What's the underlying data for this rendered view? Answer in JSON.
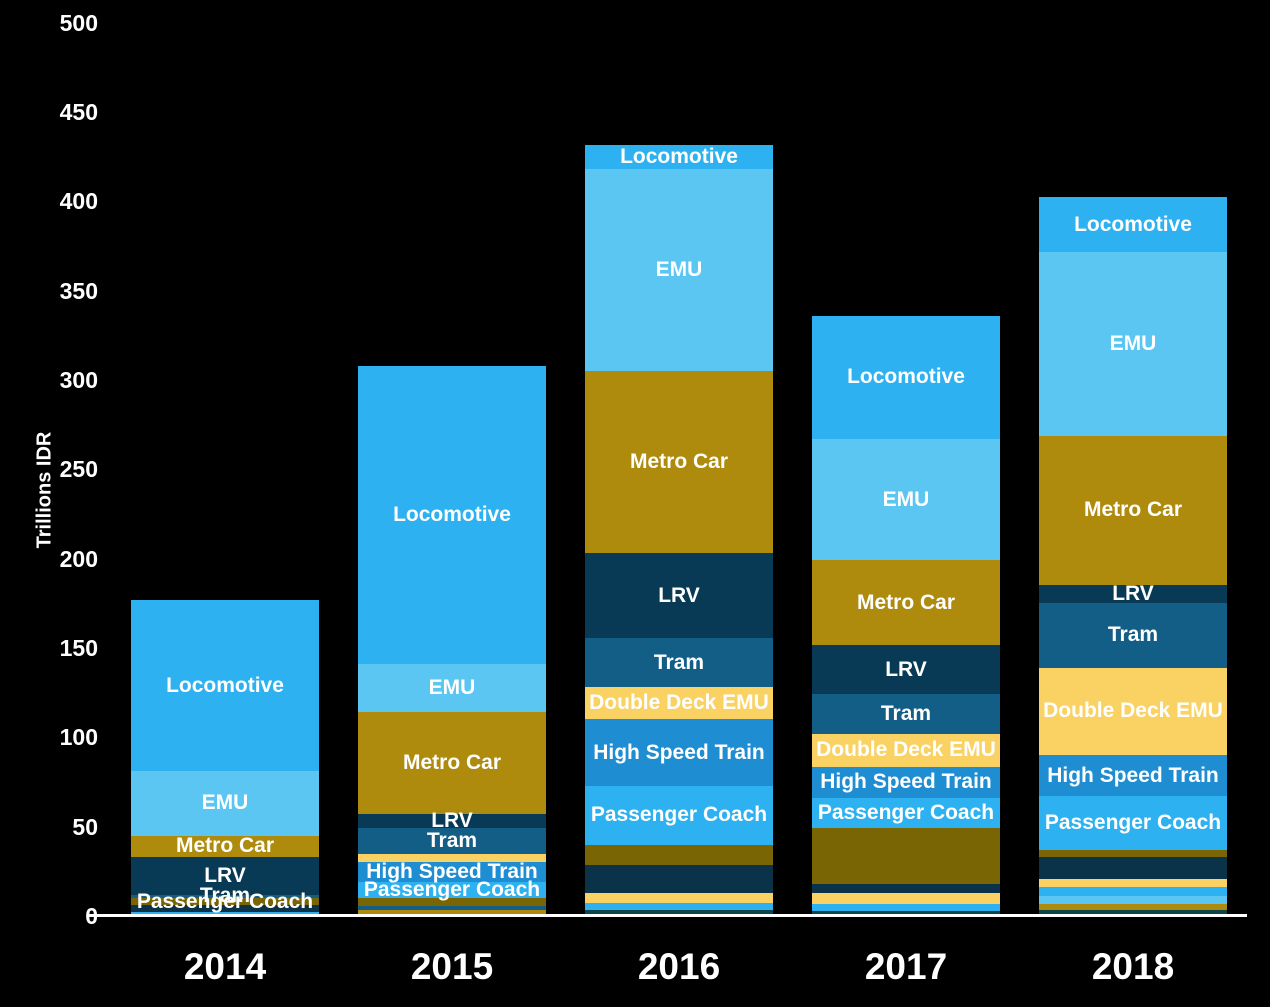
{
  "chart_data": {
    "type": "bar",
    "stacked": true,
    "title": "",
    "xlabel": "",
    "ylabel": "Trillions IDR",
    "ylim": [
      0,
      500
    ],
    "yticks": [
      0,
      50,
      100,
      150,
      200,
      250,
      300,
      350,
      400,
      450,
      500
    ],
    "grid": false,
    "legend": "none (segments labeled inline)",
    "categories": [
      "2014",
      "2015",
      "2016",
      "2017",
      "2018"
    ],
    "series_labels": [
      "Locomotive",
      "EMU",
      "Metro Car",
      "LRV",
      "Tram",
      "Double Deck EMU",
      "High Speed Train",
      "Passenger Coach"
    ],
    "colors": {
      "locomotive": "#2EB1F0",
      "emu": "#5CC6F3",
      "metro_car": "#AE8B0D",
      "lrv": "#093A55",
      "tram": "#125E87",
      "double_deck_emu": "#FAD263",
      "high_speed_train": "#1F8DD2",
      "passenger_coach": "#2EB1F0",
      "olive": "#7A6505",
      "dark_navy": "#0A334A",
      "dark_teal": "#0D4549"
    },
    "bars": [
      {
        "category": "2014",
        "total": 177,
        "segments": [
          {
            "label": "",
            "value": 2,
            "color": "passenger_coach"
          },
          {
            "label": "",
            "value": 4,
            "color": "dark_navy"
          },
          {
            "label": "Passenger Coach",
            "value": 4,
            "color": "olive"
          },
          {
            "label": "Tram",
            "value": 2,
            "color": "tram"
          },
          {
            "label": "LRV",
            "value": 21,
            "color": "lrv"
          },
          {
            "label": "Metro Car",
            "value": 12,
            "color": "metro_car"
          },
          {
            "label": "EMU",
            "value": 36,
            "color": "emu"
          },
          {
            "label": "Locomotive",
            "value": 96,
            "color": "locomotive"
          }
        ]
      },
      {
        "category": "2015",
        "total": 308,
        "segments": [
          {
            "label": "",
            "value": 3.5,
            "color": "metro_car"
          },
          {
            "label": "",
            "value": 2,
            "color": "tram"
          },
          {
            "label": "",
            "value": 4.5,
            "color": "olive"
          },
          {
            "label": "Passenger Coach",
            "value": 9,
            "color": "passenger_coach"
          },
          {
            "label": "High Speed Train",
            "value": 11,
            "color": "high_speed_train"
          },
          {
            "label": "",
            "value": 4.5,
            "color": "double_deck_emu"
          },
          {
            "label": "Tram",
            "value": 15,
            "color": "tram"
          },
          {
            "label": "LRV",
            "value": 7.5,
            "color": "lrv"
          },
          {
            "label": "Metro Car",
            "value": 57,
            "color": "metro_car"
          },
          {
            "label": "EMU",
            "value": 27,
            "color": "emu"
          },
          {
            "label": "Locomotive",
            "value": 167,
            "color": "locomotive"
          }
        ]
      },
      {
        "category": "2016",
        "total": 431.5,
        "segments": [
          {
            "label": "",
            "value": 3.5,
            "color": "dark_teal"
          },
          {
            "label": "",
            "value": 4,
            "color": "locomotive"
          },
          {
            "label": "",
            "value": 5.5,
            "color": "double_deck_emu"
          },
          {
            "label": "",
            "value": 15.5,
            "color": "dark_navy"
          },
          {
            "label": "",
            "value": 11.5,
            "color": "olive"
          },
          {
            "label": "Passenger Coach",
            "value": 33,
            "color": "passenger_coach"
          },
          {
            "label": "High Speed Train",
            "value": 37,
            "color": "high_speed_train"
          },
          {
            "label": "Double Deck EMU",
            "value": 18,
            "color": "double_deck_emu"
          },
          {
            "label": "Tram",
            "value": 27.5,
            "color": "tram"
          },
          {
            "label": "LRV",
            "value": 47.5,
            "color": "lrv"
          },
          {
            "label": "Metro Car",
            "value": 102,
            "color": "metro_car"
          },
          {
            "label": "EMU",
            "value": 113,
            "color": "emu"
          },
          {
            "label": "Locomotive",
            "value": 13.5,
            "color": "locomotive"
          }
        ]
      },
      {
        "category": "2017",
        "total": 336,
        "segments": [
          {
            "label": "",
            "value": 3,
            "color": "dark_teal"
          },
          {
            "label": "",
            "value": 3.5,
            "color": "locomotive"
          },
          {
            "label": "",
            "value": 6.5,
            "color": "double_deck_emu"
          },
          {
            "label": "",
            "value": 5,
            "color": "dark_navy"
          },
          {
            "label": "",
            "value": 31,
            "color": "olive"
          },
          {
            "label": "Passenger Coach",
            "value": 17,
            "color": "passenger_coach"
          },
          {
            "label": "High Speed Train",
            "value": 17.5,
            "color": "high_speed_train"
          },
          {
            "label": "Double Deck EMU",
            "value": 18.5,
            "color": "double_deck_emu"
          },
          {
            "label": "Tram",
            "value": 22,
            "color": "tram"
          },
          {
            "label": "LRV",
            "value": 27.5,
            "color": "lrv"
          },
          {
            "label": "Metro Car",
            "value": 47.5,
            "color": "metro_car"
          },
          {
            "label": "EMU",
            "value": 68,
            "color": "emu"
          },
          {
            "label": "Locomotive",
            "value": 69,
            "color": "locomotive"
          }
        ]
      },
      {
        "category": "2018",
        "total": 402.5,
        "segments": [
          {
            "label": "",
            "value": 3.5,
            "color": "dark_teal"
          },
          {
            "label": "",
            "value": 3.5,
            "color": "metro_car"
          },
          {
            "label": "",
            "value": 4,
            "color": "emu"
          },
          {
            "label": "",
            "value": 5.5,
            "color": "locomotive"
          },
          {
            "label": "",
            "value": 4,
            "color": "double_deck_emu"
          },
          {
            "label": "",
            "value": 12.5,
            "color": "dark_navy"
          },
          {
            "label": "",
            "value": 4,
            "color": "olive"
          },
          {
            "label": "Passenger Coach",
            "value": 30,
            "color": "passenger_coach"
          },
          {
            "label": "High Speed Train",
            "value": 23,
            "color": "high_speed_train"
          },
          {
            "label": "Double Deck EMU",
            "value": 49,
            "color": "double_deck_emu"
          },
          {
            "label": "Tram",
            "value": 36,
            "color": "tram"
          },
          {
            "label": "LRV",
            "value": 10.5,
            "color": "lrv"
          },
          {
            "label": "Metro Car",
            "value": 83,
            "color": "metro_car"
          },
          {
            "label": "EMU",
            "value": 103,
            "color": "emu"
          },
          {
            "label": "Locomotive",
            "value": 31,
            "color": "locomotive"
          }
        ]
      }
    ]
  }
}
